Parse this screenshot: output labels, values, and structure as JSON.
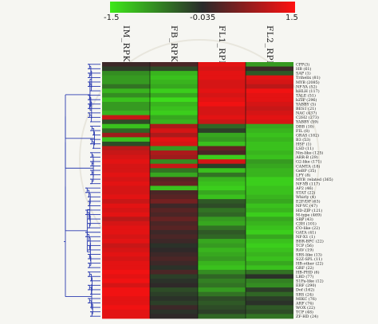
{
  "chart_data": {
    "type": "heatmap",
    "colorbar": {
      "min": -1.5,
      "mid": -0.035,
      "max": 1.5,
      "tick_labels": [
        "-1.5",
        "-0.035",
        "1.5"
      ],
      "colors": {
        "low": "#3ee81a",
        "mid": "#2a2a2a",
        "high": "#ff1010"
      }
    },
    "columns": [
      "IM_RPKM",
      "FB_RPKM",
      "FL1_RPKM",
      "FL2_RPKM"
    ],
    "rows": [
      {
        "label": "CPP(3)",
        "values": [
          0.1,
          0.2,
          1.3,
          -0.9
        ]
      },
      {
        "label": "HB (61)",
        "values": [
          -0.2,
          -0.3,
          1.2,
          0.1
        ]
      },
      {
        "label": "SAP (1)",
        "values": [
          -0.8,
          -1.1,
          1.3,
          -0.4
        ]
      },
      {
        "label": "Trihelix (81)",
        "values": [
          -0.9,
          -1.2,
          1.3,
          1.3
        ]
      },
      {
        "label": "MYB (2085)",
        "values": [
          -0.9,
          -1.1,
          1.2,
          1.2
        ]
      },
      {
        "label": "NF-YA (52)",
        "values": [
          -0.6,
          -1.0,
          1.2,
          1.0
        ]
      },
      {
        "label": "bHLH (117)",
        "values": [
          -1.1,
          -1.3,
          1.3,
          1.4
        ]
      },
      {
        "label": "TALE (51)",
        "values": [
          -0.8,
          -1.0,
          1.2,
          1.3
        ]
      },
      {
        "label": "bZIP (296)",
        "values": [
          -1.2,
          -1.4,
          1.3,
          1.3
        ]
      },
      {
        "label": "YABBY (5)",
        "values": [
          -0.9,
          -1.1,
          1.4,
          1.2
        ]
      },
      {
        "label": "BES1 (21)",
        "values": [
          -0.9,
          -1.2,
          1.2,
          1.1
        ]
      },
      {
        "label": "NAC (437)",
        "values": [
          -1.1,
          -1.3,
          1.2,
          1.2
        ]
      },
      {
        "label": "C2H2 (273)",
        "values": [
          1.1,
          -1.0,
          1.3,
          1.3
        ]
      },
      {
        "label": "YABBY (59)",
        "values": [
          -0.3,
          -1.1,
          1.1,
          1.2
        ]
      },
      {
        "label": "DBB (10)",
        "values": [
          -1.2,
          0.9,
          -0.5,
          -1.0
        ]
      },
      {
        "label": "FIL (8)",
        "values": [
          -0.5,
          1.2,
          -0.2,
          -1.1
        ]
      },
      {
        "label": "GRAS (182)",
        "values": [
          0.8,
          0.9,
          -1.0,
          -1.2
        ]
      },
      {
        "label": "B3 (53)",
        "values": [
          -1.2,
          1.3,
          -0.9,
          -1.1
        ]
      },
      {
        "label": "HSF (1)",
        "values": [
          -0.3,
          1.2,
          -1.2,
          -1.2
        ]
      },
      {
        "label": "LSD (11)",
        "values": [
          1.0,
          -0.9,
          0.4,
          -1.2
        ]
      },
      {
        "label": "Nin-like (125)",
        "values": [
          1.1,
          0.9,
          0.2,
          -1.1
        ]
      },
      {
        "label": "ARR-B (29)",
        "values": [
          1.2,
          0.8,
          -1.3,
          -1.2
        ]
      },
      {
        "label": "G2-like (171)",
        "values": [
          1.3,
          -0.8,
          1.2,
          -0.9
        ]
      },
      {
        "label": "CAMTA (18)",
        "values": [
          1.2,
          1.1,
          -0.2,
          -1.0
        ]
      },
      {
        "label": "GeBP (35)",
        "values": [
          1.2,
          -0.6,
          -1.2,
          -1.1
        ]
      },
      {
        "label": "LFY (8)",
        "values": [
          1.3,
          -1.0,
          -0.6,
          -1.1
        ]
      },
      {
        "label": "MYB_related (365)",
        "values": [
          1.2,
          0.3,
          -1.1,
          -1.3
        ]
      },
      {
        "label": "NF-YB (117)",
        "values": [
          1.3,
          0.4,
          -1.2,
          -1.3
        ]
      },
      {
        "label": "AP2 (46)",
        "values": [
          1.2,
          -1.2,
          -1.3,
          -1.2
        ]
      },
      {
        "label": "STAT (22)",
        "values": [
          1.2,
          0.2,
          -1.0,
          -1.2
        ]
      },
      {
        "label": "Whirly (4)",
        "values": [
          1.3,
          0.3,
          -1.2,
          -1.1
        ]
      },
      {
        "label": "E2F/DP (63)",
        "values": [
          1.1,
          0.5,
          -0.4,
          -1.0
        ]
      },
      {
        "label": "NF-YC (47)",
        "values": [
          1.3,
          0.1,
          -0.3,
          -1.2
        ]
      },
      {
        "label": "HD-ZIP (121)",
        "values": [
          1.2,
          0.3,
          -0.6,
          -1.1
        ]
      },
      {
        "label": "M-type (469)",
        "values": [
          1.3,
          0.2,
          -0.5,
          -1.3
        ]
      },
      {
        "label": "SBP (43)",
        "values": [
          1.0,
          0.4,
          -0.9,
          -1.0
        ]
      },
      {
        "label": "C3H (101)",
        "values": [
          1.2,
          0.2,
          -1.0,
          -1.1
        ]
      },
      {
        "label": "CO-like (22)",
        "values": [
          1.3,
          0.3,
          -0.6,
          -1.2
        ]
      },
      {
        "label": "GATA (41)",
        "values": [
          1.3,
          0.1,
          -0.4,
          -1.3
        ]
      },
      {
        "label": "NF-X1 (1)",
        "values": [
          1.2,
          0.2,
          -0.5,
          -1.0
        ]
      },
      {
        "label": "BBR-BPC (22)",
        "values": [
          1.3,
          0.1,
          -1.0,
          -1.2
        ]
      },
      {
        "label": "TCP (56)",
        "values": [
          1.1,
          -0.1,
          -0.9,
          -1.3
        ]
      },
      {
        "label": "RAV (19)",
        "values": [
          1.2,
          0.0,
          -1.1,
          -1.2
        ]
      },
      {
        "label": "SRS-like (13)",
        "values": [
          1.3,
          0.1,
          -1.0,
          -1.1
        ]
      },
      {
        "label": "S2Z-SPL (11)",
        "values": [
          1.2,
          0.2,
          -0.9,
          -1.2
        ]
      },
      {
        "label": "HB-other (22)",
        "values": [
          1.3,
          0.1,
          -1.1,
          -1.0
        ]
      },
      {
        "label": "GRF (22)",
        "values": [
          1.3,
          -0.1,
          -1.2,
          -1.2
        ]
      },
      {
        "label": "HB-PHD (6)",
        "values": [
          1.4,
          0.2,
          -0.8,
          -0.6
        ]
      },
      {
        "label": "LBD (77)",
        "values": [
          1.3,
          -0.2,
          -0.5,
          -0.1
        ]
      },
      {
        "label": "S1Fa-like (12)",
        "values": [
          1.4,
          -0.1,
          -0.7,
          -0.7
        ]
      },
      {
        "label": "ERF (290)",
        "values": [
          1.2,
          0.0,
          -0.6,
          -0.8
        ]
      },
      {
        "label": "Dof (162)",
        "values": [
          1.4,
          -0.3,
          -0.9,
          -0.2
        ]
      },
      {
        "label": "SRS (24)",
        "values": [
          1.4,
          -0.2,
          -0.6,
          -0.5
        ]
      },
      {
        "label": "MIKC (76)",
        "values": [
          1.3,
          -0.1,
          -0.3,
          -0.2
        ]
      },
      {
        "label": "ARF (74)",
        "values": [
          1.3,
          -0.2,
          -0.4,
          -0.1
        ]
      },
      {
        "label": "WOX (22)",
        "values": [
          1.4,
          0.1,
          -0.3,
          -0.4
        ]
      },
      {
        "label": "TCP (48)",
        "values": [
          1.3,
          -0.1,
          -0.2,
          -0.3
        ]
      },
      {
        "label": "ZF-HD (24)",
        "values": [
          1.3,
          0.0,
          -0.5,
          -0.6
        ]
      }
    ]
  }
}
